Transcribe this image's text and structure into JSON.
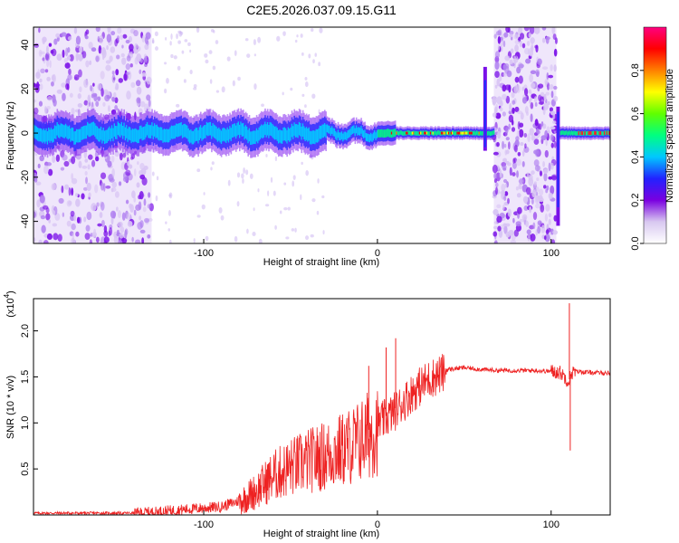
{
  "figure": {
    "title": "C2E5.2026.037.09.15.G11"
  },
  "chart_data": [
    {
      "type": "heatmap",
      "name": "spectrogram",
      "title": "C2E5.2026.037.09.15.G11",
      "xlabel": "Height of straight line (km)",
      "ylabel": "Frequency (Hz)",
      "xlim": [
        -198,
        134
      ],
      "ylim": [
        -50,
        48
      ],
      "xticks": [
        -100,
        0,
        100
      ],
      "xtick_labels": [
        "-100",
        "0",
        "100"
      ],
      "yticks": [
        -40,
        -20,
        0,
        20,
        40
      ],
      "ytick_labels": [
        "-40",
        "-20",
        "0",
        "20",
        "40"
      ],
      "colorbar": {
        "label": "Normalized spectral amplitude",
        "range": [
          0,
          1
        ],
        "ticks": [
          0.0,
          0.2,
          0.4,
          0.6,
          0.8
        ],
        "tick_labels": [
          "0.0",
          "0.2",
          "0.4",
          "0.6",
          "0.8"
        ],
        "colormap": [
          "#ffffff",
          "#d8c8f0",
          "#7a00e0",
          "#2222ff",
          "#00c8ff",
          "#00ff80",
          "#60ff00",
          "#ffff00",
          "#ff8000",
          "#ff0000",
          "#ff0080"
        ]
      },
      "features": {
        "band_center_hz": 0,
        "noise_regions_km": [
          [
            -198,
            -130
          ],
          [
            67,
            103
          ]
        ],
        "spike_positions_km": [
          62,
          104
        ]
      }
    },
    {
      "type": "line",
      "name": "snr",
      "xlabel": "Height of straight line (km)",
      "ylabel": "SNR (10 * v/v)",
      "multiplier_label": "(x10",
      "multiplier_exponent": "4",
      "color": "#ee2222",
      "xlim": [
        -198,
        134
      ],
      "ylim": [
        0,
        2.35
      ],
      "xticks": [
        -100,
        0,
        100
      ],
      "xtick_labels": [
        "-100",
        "0",
        "100"
      ],
      "yticks": [
        0.5,
        1.0,
        1.5,
        2.0
      ],
      "ytick_labels": [
        "0.5",
        "1.0",
        "1.5",
        "2.0"
      ],
      "envelope": {
        "x": [
          -198,
          -140,
          -130,
          -110,
          -90,
          -80,
          -70,
          -60,
          -50,
          -40,
          -30,
          -20,
          -10,
          0,
          10,
          20,
          30,
          40,
          50,
          60,
          70,
          80,
          90,
          100,
          105,
          108,
          110,
          112,
          115,
          120,
          134
        ],
        "y": [
          0.02,
          0.02,
          0.03,
          0.06,
          0.09,
          0.15,
          0.28,
          0.45,
          0.55,
          0.62,
          0.68,
          0.75,
          0.85,
          1.0,
          1.15,
          1.35,
          1.5,
          1.58,
          1.6,
          1.58,
          1.57,
          1.57,
          1.57,
          1.56,
          1.55,
          1.5,
          1.45,
          1.55,
          1.56,
          1.55,
          1.54
        ]
      },
      "spikes": [
        {
          "x": 110.5,
          "y": 2.3
        },
        {
          "x": 111.0,
          "y": 0.7
        },
        {
          "x": 10.5,
          "y": 1.92
        },
        {
          "x": 5.0,
          "y": 1.82
        },
        {
          "x": -5.0,
          "y": 1.62
        }
      ]
    }
  ]
}
